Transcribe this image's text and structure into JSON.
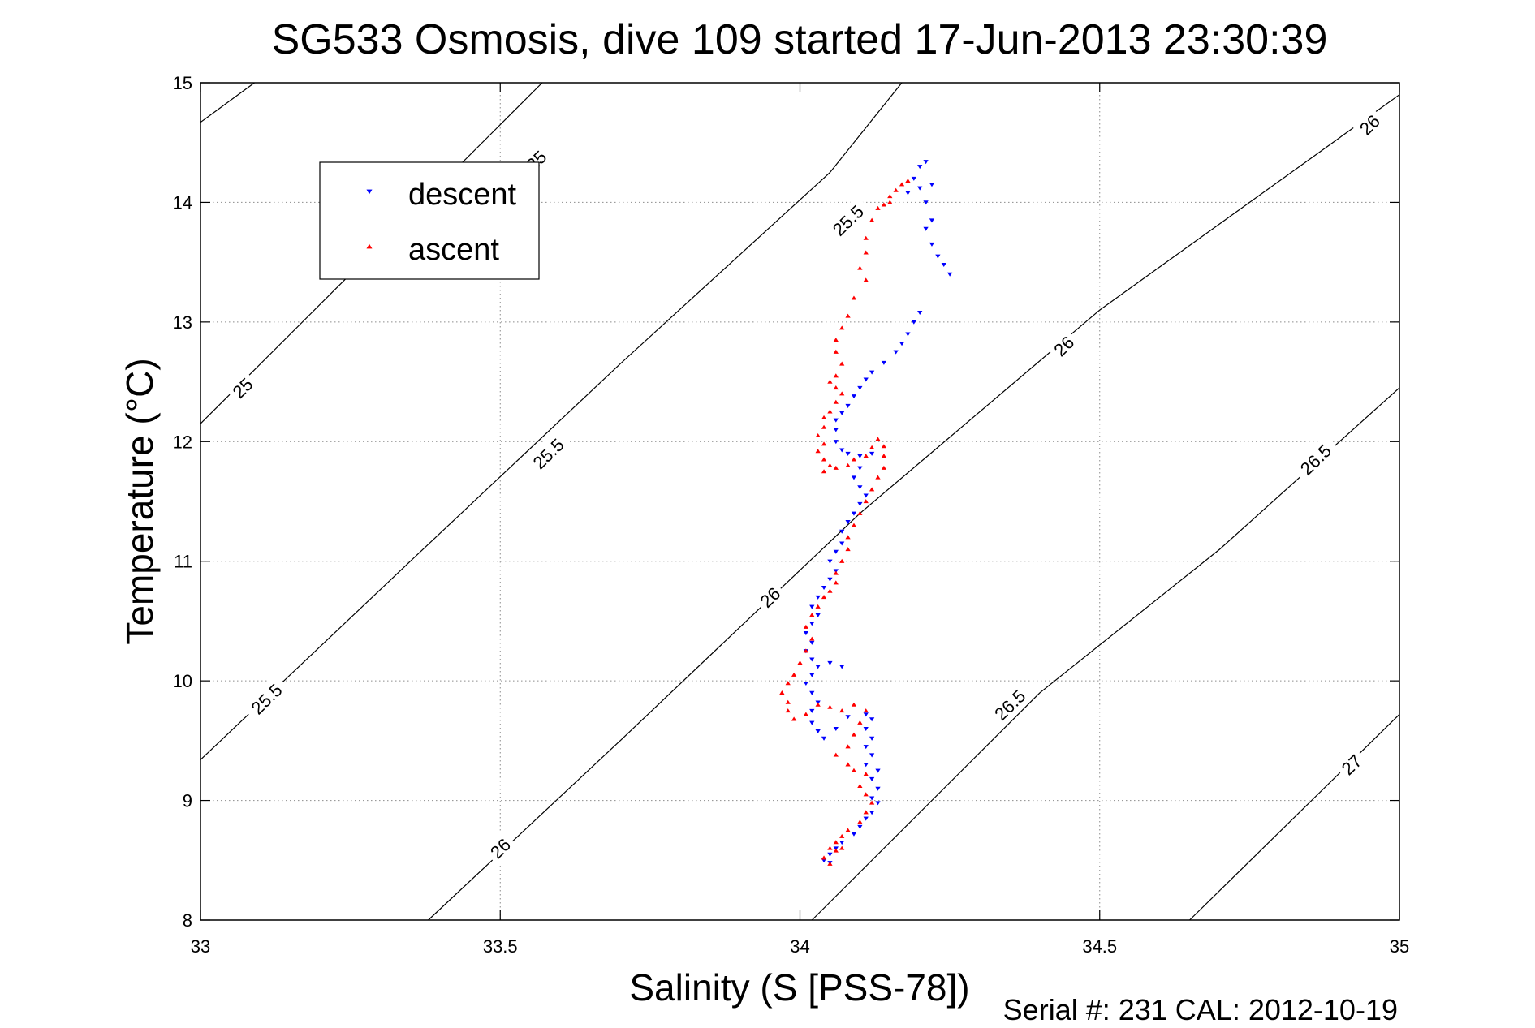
{
  "chart_data": {
    "type": "scatter",
    "title": "SG533 Osmosis, dive 109 started 17-Jun-2013 23:30:39",
    "xlabel": "Salinity (S [PSS-78])",
    "ylabel": "Temperature (°C)",
    "footer": "Serial #: 231  CAL: 2012-10-19",
    "xlim": [
      33,
      35
    ],
    "ylim": [
      8,
      15
    ],
    "xticks": [
      "33",
      "33.5",
      "34",
      "34.5",
      "35"
    ],
    "yticks": [
      "8",
      "9",
      "10",
      "11",
      "12",
      "13",
      "14",
      "15"
    ],
    "grid": true,
    "legend_position": "top-left",
    "legend": [
      {
        "label": "descent",
        "color": "#0000ff",
        "marker": "triangle-down"
      },
      {
        "label": "ascent",
        "color": "#ff0000",
        "marker": "triangle-up"
      }
    ],
    "contours": [
      {
        "level": "25",
        "points": [
          [
            33,
            14.67
          ],
          [
            33.09,
            15
          ]
        ],
        "labels": []
      },
      {
        "level": "25",
        "points": [
          [
            33,
            12.15
          ],
          [
            33.25,
            13.4
          ],
          [
            33.49,
            14.6
          ],
          [
            33.57,
            15
          ]
        ],
        "labels": [
          [
            33.07,
            12.45
          ]
        ]
      },
      {
        "level": "25.5",
        "points": [
          [
            33,
            9.34
          ],
          [
            33.35,
            11.0
          ],
          [
            33.7,
            12.65
          ],
          [
            34.05,
            14.25
          ],
          [
            34.17,
            15
          ]
        ],
        "labels": [
          [
            33.11,
            9.85
          ],
          [
            33.58,
            11.9
          ]
        ]
      },
      {
        "level": "26",
        "points": [
          [
            33.38,
            8
          ],
          [
            33.7,
            9.5
          ],
          [
            34.1,
            11.4
          ],
          [
            34.5,
            13.1
          ],
          [
            35,
            14.9
          ]
        ],
        "labels": [
          [
            33.5,
            8.6
          ],
          [
            33.95,
            10.7
          ],
          [
            34.44,
            12.8
          ],
          [
            34.95,
            14.65
          ]
        ]
      },
      {
        "level": "26.5",
        "points": [
          [
            34.02,
            8
          ],
          [
            34.4,
            9.9
          ],
          [
            34.7,
            11.1
          ],
          [
            35,
            12.45
          ]
        ],
        "labels": [
          [
            34.35,
            9.8
          ],
          [
            34.86,
            11.85
          ]
        ]
      },
      {
        "level": "27",
        "points": [
          [
            34.65,
            8
          ],
          [
            35,
            9.72
          ]
        ],
        "labels": [
          [
            34.92,
            9.3
          ]
        ]
      }
    ],
    "contour_labels_extra": [
      {
        "text": "25",
        "x": 33.56,
        "y": 14.35
      },
      {
        "text": "25.5",
        "x": 34.08,
        "y": 13.85
      }
    ],
    "series": [
      {
        "name": "descent",
        "color": "#0000ff",
        "marker": "triangle-down",
        "points": [
          [
            34.21,
            14.34
          ],
          [
            34.2,
            14.3
          ],
          [
            34.22,
            14.15
          ],
          [
            34.19,
            14.2
          ],
          [
            34.18,
            14.08
          ],
          [
            34.2,
            14.12
          ],
          [
            34.21,
            14.0
          ],
          [
            34.22,
            13.85
          ],
          [
            34.21,
            13.78
          ],
          [
            34.22,
            13.65
          ],
          [
            34.23,
            13.55
          ],
          [
            34.24,
            13.48
          ],
          [
            34.25,
            13.4
          ],
          [
            34.2,
            13.08
          ],
          [
            34.19,
            13.0
          ],
          [
            34.18,
            12.9
          ],
          [
            34.17,
            12.82
          ],
          [
            34.16,
            12.75
          ],
          [
            34.14,
            12.66
          ],
          [
            34.12,
            12.58
          ],
          [
            34.11,
            12.52
          ],
          [
            34.1,
            12.45
          ],
          [
            34.09,
            12.38
          ],
          [
            34.08,
            12.3
          ],
          [
            34.07,
            12.24
          ],
          [
            34.06,
            12.18
          ],
          [
            34.06,
            12.1
          ],
          [
            34.06,
            12.0
          ],
          [
            34.07,
            11.93
          ],
          [
            34.08,
            11.9
          ],
          [
            34.1,
            11.88
          ],
          [
            34.12,
            11.9
          ],
          [
            34.1,
            11.78
          ],
          [
            34.09,
            11.7
          ],
          [
            34.1,
            11.62
          ],
          [
            34.11,
            11.55
          ],
          [
            34.1,
            11.48
          ],
          [
            34.09,
            11.4
          ],
          [
            34.08,
            11.33
          ],
          [
            34.07,
            11.25
          ],
          [
            34.07,
            11.15
          ],
          [
            34.06,
            11.08
          ],
          [
            34.05,
            11.0
          ],
          [
            34.06,
            10.92
          ],
          [
            34.05,
            10.85
          ],
          [
            34.04,
            10.78
          ],
          [
            34.03,
            10.7
          ],
          [
            34.02,
            10.62
          ],
          [
            34.03,
            10.55
          ],
          [
            34.02,
            10.48
          ],
          [
            34.01,
            10.4
          ],
          [
            34.02,
            10.32
          ],
          [
            34.01,
            10.25
          ],
          [
            34.02,
            10.18
          ],
          [
            34.03,
            10.12
          ],
          [
            34.05,
            10.15
          ],
          [
            34.07,
            10.12
          ],
          [
            34.02,
            10.05
          ],
          [
            34.01,
            9.98
          ],
          [
            34.02,
            9.9
          ],
          [
            34.03,
            9.82
          ],
          [
            34.02,
            9.75
          ],
          [
            34.02,
            9.65
          ],
          [
            34.03,
            9.58
          ],
          [
            34.04,
            9.52
          ],
          [
            34.06,
            9.6
          ],
          [
            34.08,
            9.7
          ],
          [
            34.11,
            9.72
          ],
          [
            34.12,
            9.68
          ],
          [
            34.11,
            9.6
          ],
          [
            34.12,
            9.52
          ],
          [
            34.11,
            9.45
          ],
          [
            34.12,
            9.38
          ],
          [
            34.11,
            9.3
          ],
          [
            34.13,
            9.25
          ],
          [
            34.12,
            9.18
          ],
          [
            34.13,
            9.1
          ],
          [
            34.12,
            9.02
          ],
          [
            34.13,
            8.98
          ],
          [
            34.12,
            8.9
          ],
          [
            34.11,
            8.85
          ],
          [
            34.1,
            8.78
          ],
          [
            34.09,
            8.72
          ],
          [
            34.07,
            8.65
          ],
          [
            34.06,
            8.6
          ],
          [
            34.05,
            8.55
          ],
          [
            34.04,
            8.5
          ],
          [
            34.05,
            8.48
          ]
        ]
      },
      {
        "name": "ascent",
        "color": "#ff0000",
        "marker": "triangle-up",
        "points": [
          [
            34.18,
            14.18
          ],
          [
            34.17,
            14.15
          ],
          [
            34.16,
            14.1
          ],
          [
            34.15,
            14.05
          ],
          [
            34.15,
            14.0
          ],
          [
            34.14,
            13.98
          ],
          [
            34.13,
            13.95
          ],
          [
            34.12,
            13.85
          ],
          [
            34.11,
            13.7
          ],
          [
            34.11,
            13.58
          ],
          [
            34.1,
            13.45
          ],
          [
            34.11,
            13.35
          ],
          [
            34.09,
            13.2
          ],
          [
            34.08,
            13.05
          ],
          [
            34.07,
            12.95
          ],
          [
            34.06,
            12.85
          ],
          [
            34.06,
            12.75
          ],
          [
            34.07,
            12.65
          ],
          [
            34.06,
            12.55
          ],
          [
            34.05,
            12.5
          ],
          [
            34.06,
            12.45
          ],
          [
            34.07,
            12.4
          ],
          [
            34.06,
            12.33
          ],
          [
            34.05,
            12.25
          ],
          [
            34.04,
            12.2
          ],
          [
            34.04,
            12.12
          ],
          [
            34.03,
            12.05
          ],
          [
            34.04,
            11.98
          ],
          [
            34.03,
            11.92
          ],
          [
            34.04,
            11.85
          ],
          [
            34.05,
            11.8
          ],
          [
            34.04,
            11.75
          ],
          [
            34.06,
            11.78
          ],
          [
            34.08,
            11.8
          ],
          [
            34.09,
            11.85
          ],
          [
            34.11,
            11.88
          ],
          [
            34.12,
            11.95
          ],
          [
            34.13,
            12.02
          ],
          [
            34.14,
            11.96
          ],
          [
            34.14,
            11.88
          ],
          [
            34.14,
            11.78
          ],
          [
            34.13,
            11.7
          ],
          [
            34.12,
            11.6
          ],
          [
            34.11,
            11.5
          ],
          [
            34.1,
            11.4
          ],
          [
            34.09,
            11.3
          ],
          [
            34.08,
            11.2
          ],
          [
            34.08,
            11.1
          ],
          [
            34.07,
            11.0
          ],
          [
            34.06,
            10.9
          ],
          [
            34.06,
            10.82
          ],
          [
            34.05,
            10.75
          ],
          [
            34.04,
            10.7
          ],
          [
            34.03,
            10.62
          ],
          [
            34.02,
            10.55
          ],
          [
            34.01,
            10.45
          ],
          [
            34.02,
            10.35
          ],
          [
            34.01,
            10.25
          ],
          [
            34.0,
            10.15
          ],
          [
            33.99,
            10.05
          ],
          [
            33.98,
            9.98
          ],
          [
            33.97,
            9.9
          ],
          [
            33.98,
            9.82
          ],
          [
            33.98,
            9.75
          ],
          [
            33.99,
            9.68
          ],
          [
            34.01,
            9.72
          ],
          [
            34.03,
            9.8
          ],
          [
            34.05,
            9.78
          ],
          [
            34.07,
            9.75
          ],
          [
            34.09,
            9.8
          ],
          [
            34.11,
            9.75
          ],
          [
            34.1,
            9.65
          ],
          [
            34.09,
            9.55
          ],
          [
            34.08,
            9.45
          ],
          [
            34.06,
            9.38
          ],
          [
            34.08,
            9.3
          ],
          [
            34.09,
            9.25
          ],
          [
            34.11,
            9.22
          ],
          [
            34.1,
            9.12
          ],
          [
            34.11,
            9.05
          ],
          [
            34.12,
            8.98
          ],
          [
            34.11,
            8.9
          ],
          [
            34.1,
            8.82
          ],
          [
            34.08,
            8.75
          ],
          [
            34.07,
            8.7
          ],
          [
            34.06,
            8.65
          ],
          [
            34.05,
            8.6
          ],
          [
            34.06,
            8.58
          ],
          [
            34.07,
            8.6
          ],
          [
            34.04,
            8.52
          ],
          [
            34.05,
            8.47
          ]
        ]
      }
    ]
  }
}
